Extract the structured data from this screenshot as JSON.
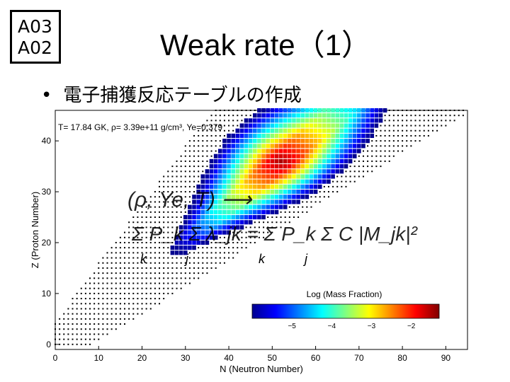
{
  "badge": {
    "line1": "A03",
    "line2": "A02"
  },
  "slide": {
    "title": "Weak rate（1）",
    "bullet": "電子捕獲反応テーブルの作成"
  },
  "chart_data": {
    "type": "heatmap",
    "annotation": "T= 17.84 GK, ρ= 3.39e+11 g/cm³, Ye=0.379",
    "xlabel": "N (Neutron Number)",
    "ylabel": "Z (Proton Number)",
    "xlim": [
      0,
      95
    ],
    "ylim": [
      -1,
      46
    ],
    "xticks": [
      0,
      10,
      20,
      30,
      40,
      50,
      60,
      70,
      80,
      90
    ],
    "yticks": [
      0,
      10,
      20,
      30,
      40
    ],
    "colorbar": {
      "label": "Log (Mass Fraction)",
      "range": [
        -6,
        -1.3
      ],
      "ticks": [
        -5,
        -4,
        -3,
        -2
      ],
      "colors": [
        "#00008f",
        "#0000ff",
        "#0080ff",
        "#00ffff",
        "#80ff80",
        "#ffff00",
        "#ff8000",
        "#ff0000",
        "#800000"
      ]
    },
    "peak": {
      "N": 52,
      "Z": 36,
      "log_value": -1.5
    },
    "equations": [
      "(ρ, Ye, T) ⟶",
      "Σ P_k Σ λ_jk = Σ P_k Σ C |M_jk|²"
    ],
    "equation_subs": [
      "k",
      "j",
      "k",
      "j"
    ]
  }
}
